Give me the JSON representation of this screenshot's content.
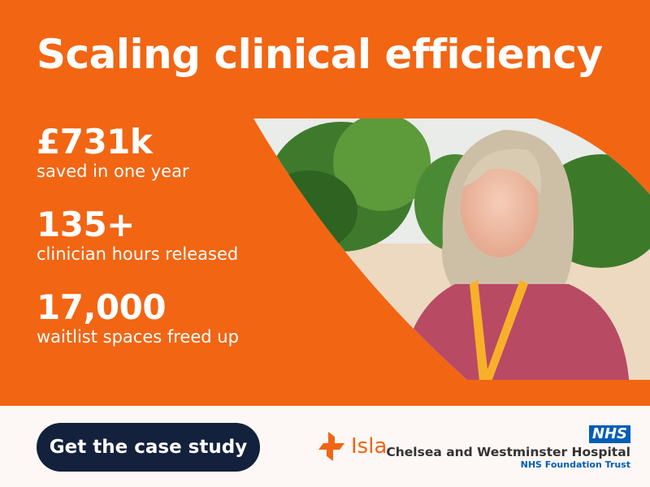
{
  "headline": "Scaling clinical efficiency",
  "stats": [
    {
      "value": "£731k",
      "label": "saved in one year"
    },
    {
      "value": "135+",
      "label": "clinician hours released"
    },
    {
      "value": "17,000",
      "label": "waitlist spaces freed up"
    }
  ],
  "cta": {
    "label": "Get the case study"
  },
  "brand": {
    "name": "Isla"
  },
  "partner": {
    "badge": "NHS",
    "name": "Chelsea and Westminster Hospital",
    "trust": "NHS Foundation Trust"
  },
  "colors": {
    "accent": "#f26513",
    "button": "#13213c",
    "nhs_blue": "#005eb8"
  }
}
